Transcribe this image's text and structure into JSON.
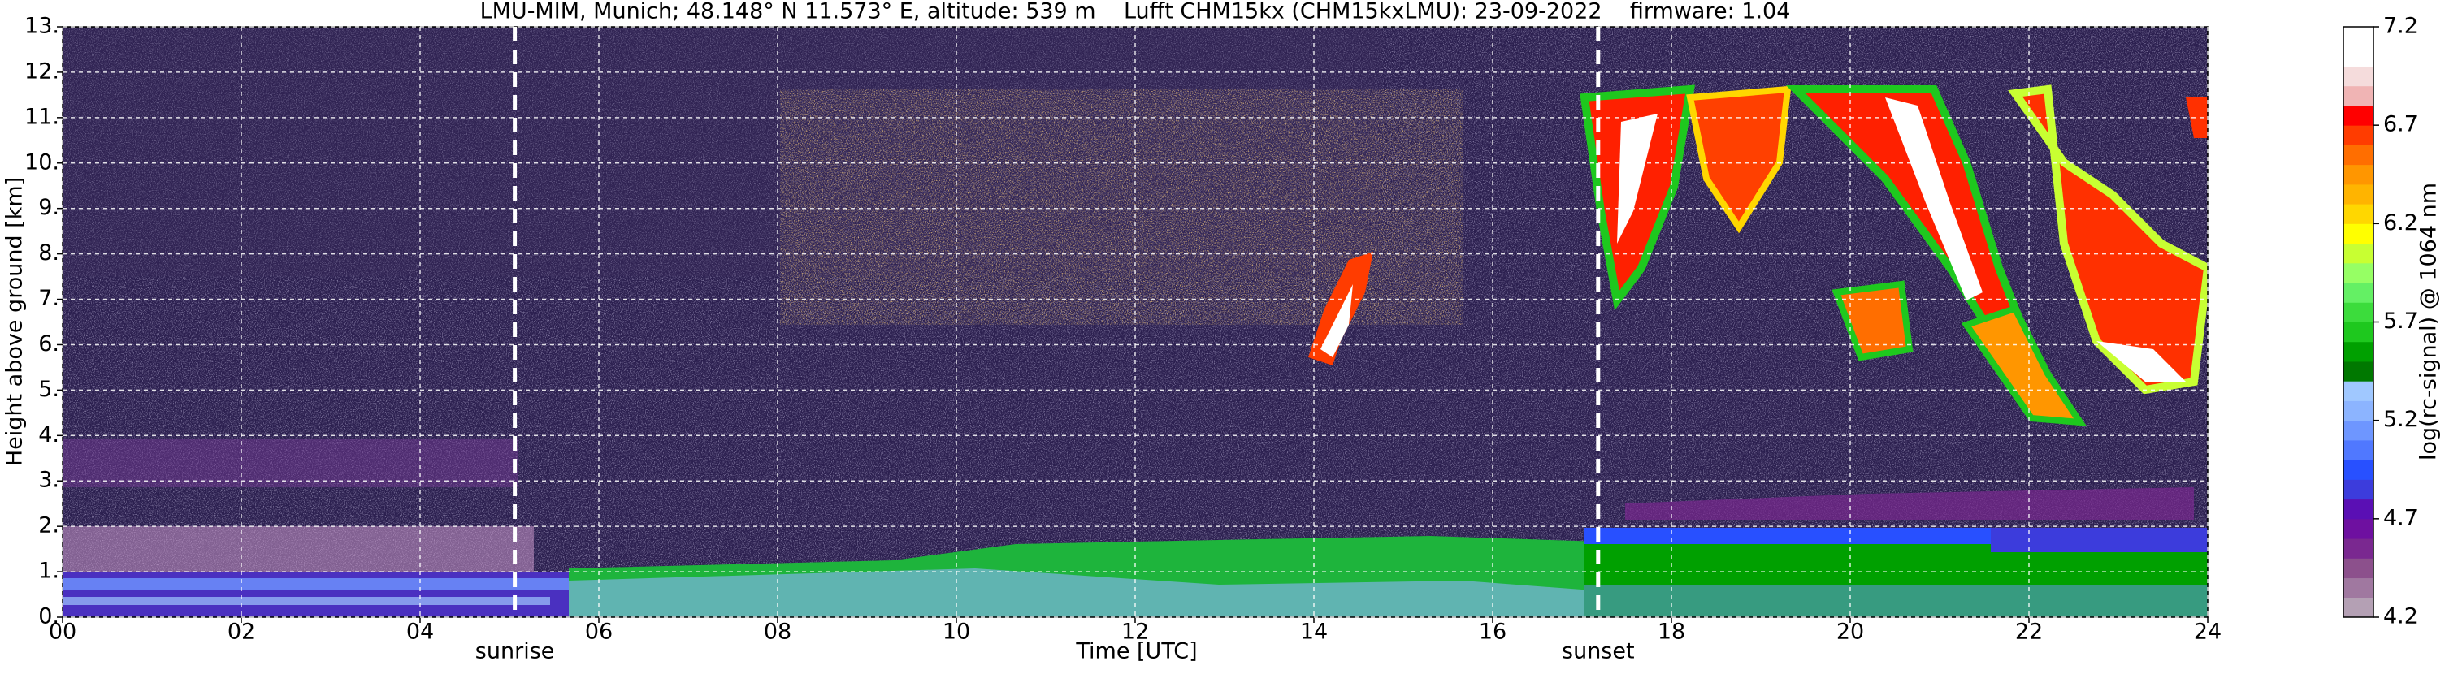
{
  "chart_data": {
    "type": "heatmap",
    "title": "LMU-MIM, Munich; 48.148° N 11.573° E, altitude: 539 m    Lufft CHM15kx (CHM15kxLMU): 23-09-2022    firmware: 1.04",
    "xlabel": "Time [UTC]",
    "ylabel": "Height above ground [km]",
    "xlim": [
      0,
      24
    ],
    "xticks": [
      {
        "value": 0,
        "label": "00"
      },
      {
        "value": 2,
        "label": "02"
      },
      {
        "value": 4,
        "label": "04"
      },
      {
        "value": 6,
        "label": "06"
      },
      {
        "value": 8,
        "label": "08"
      },
      10,
      12,
      14,
      16,
      18,
      20,
      22,
      24
    ],
    "ylim": [
      0,
      13
    ],
    "yticks": [
      {
        "value": 0,
        "label": "0."
      },
      {
        "value": 1,
        "label": "1."
      },
      {
        "value": 2,
        "label": "2."
      },
      {
        "value": 3,
        "label": "3."
      },
      {
        "value": 4,
        "label": "4."
      },
      {
        "value": 5,
        "label": "5."
      },
      {
        "value": 6,
        "label": "6."
      },
      {
        "value": 7,
        "label": "7."
      },
      {
        "value": 8,
        "label": "8."
      },
      {
        "value": 9,
        "label": "9."
      },
      {
        "value": 10,
        "label": "10."
      },
      {
        "value": 11,
        "label": "11."
      },
      {
        "value": 12,
        "label": "12."
      },
      {
        "value": 13,
        "label": "13."
      }
    ],
    "grid": true,
    "annotations": [
      {
        "text": "sunrise",
        "x": 5.06
      },
      {
        "text": "sunset",
        "x": 17.18
      }
    ],
    "colorbar": {
      "label": "log(rc-signal) @ 1064 nm",
      "lim": [
        4.2,
        7.2
      ],
      "ticks": [
        4.2,
        4.7,
        5.2,
        5.7,
        6.2,
        6.7,
        7.2
      ],
      "colors": [
        "#b4a0b4",
        "#a078a0",
        "#8c508c",
        "#7a2890",
        "#6e10a0",
        "#5a0fb4",
        "#3c3cdc",
        "#2850ff",
        "#5078ff",
        "#6e96ff",
        "#8cb4ff",
        "#a0c8ff",
        "#007800",
        "#00a000",
        "#1ec81e",
        "#3cdc3c",
        "#64f064",
        "#96ff64",
        "#c8ff32",
        "#ffff00",
        "#ffd700",
        "#ffb400",
        "#ff9600",
        "#ff6e00",
        "#ff3c00",
        "#ff0000",
        "#f0b4b4",
        "#f5dcdc",
        "#ffffff",
        "#ffffff"
      ]
    }
  }
}
